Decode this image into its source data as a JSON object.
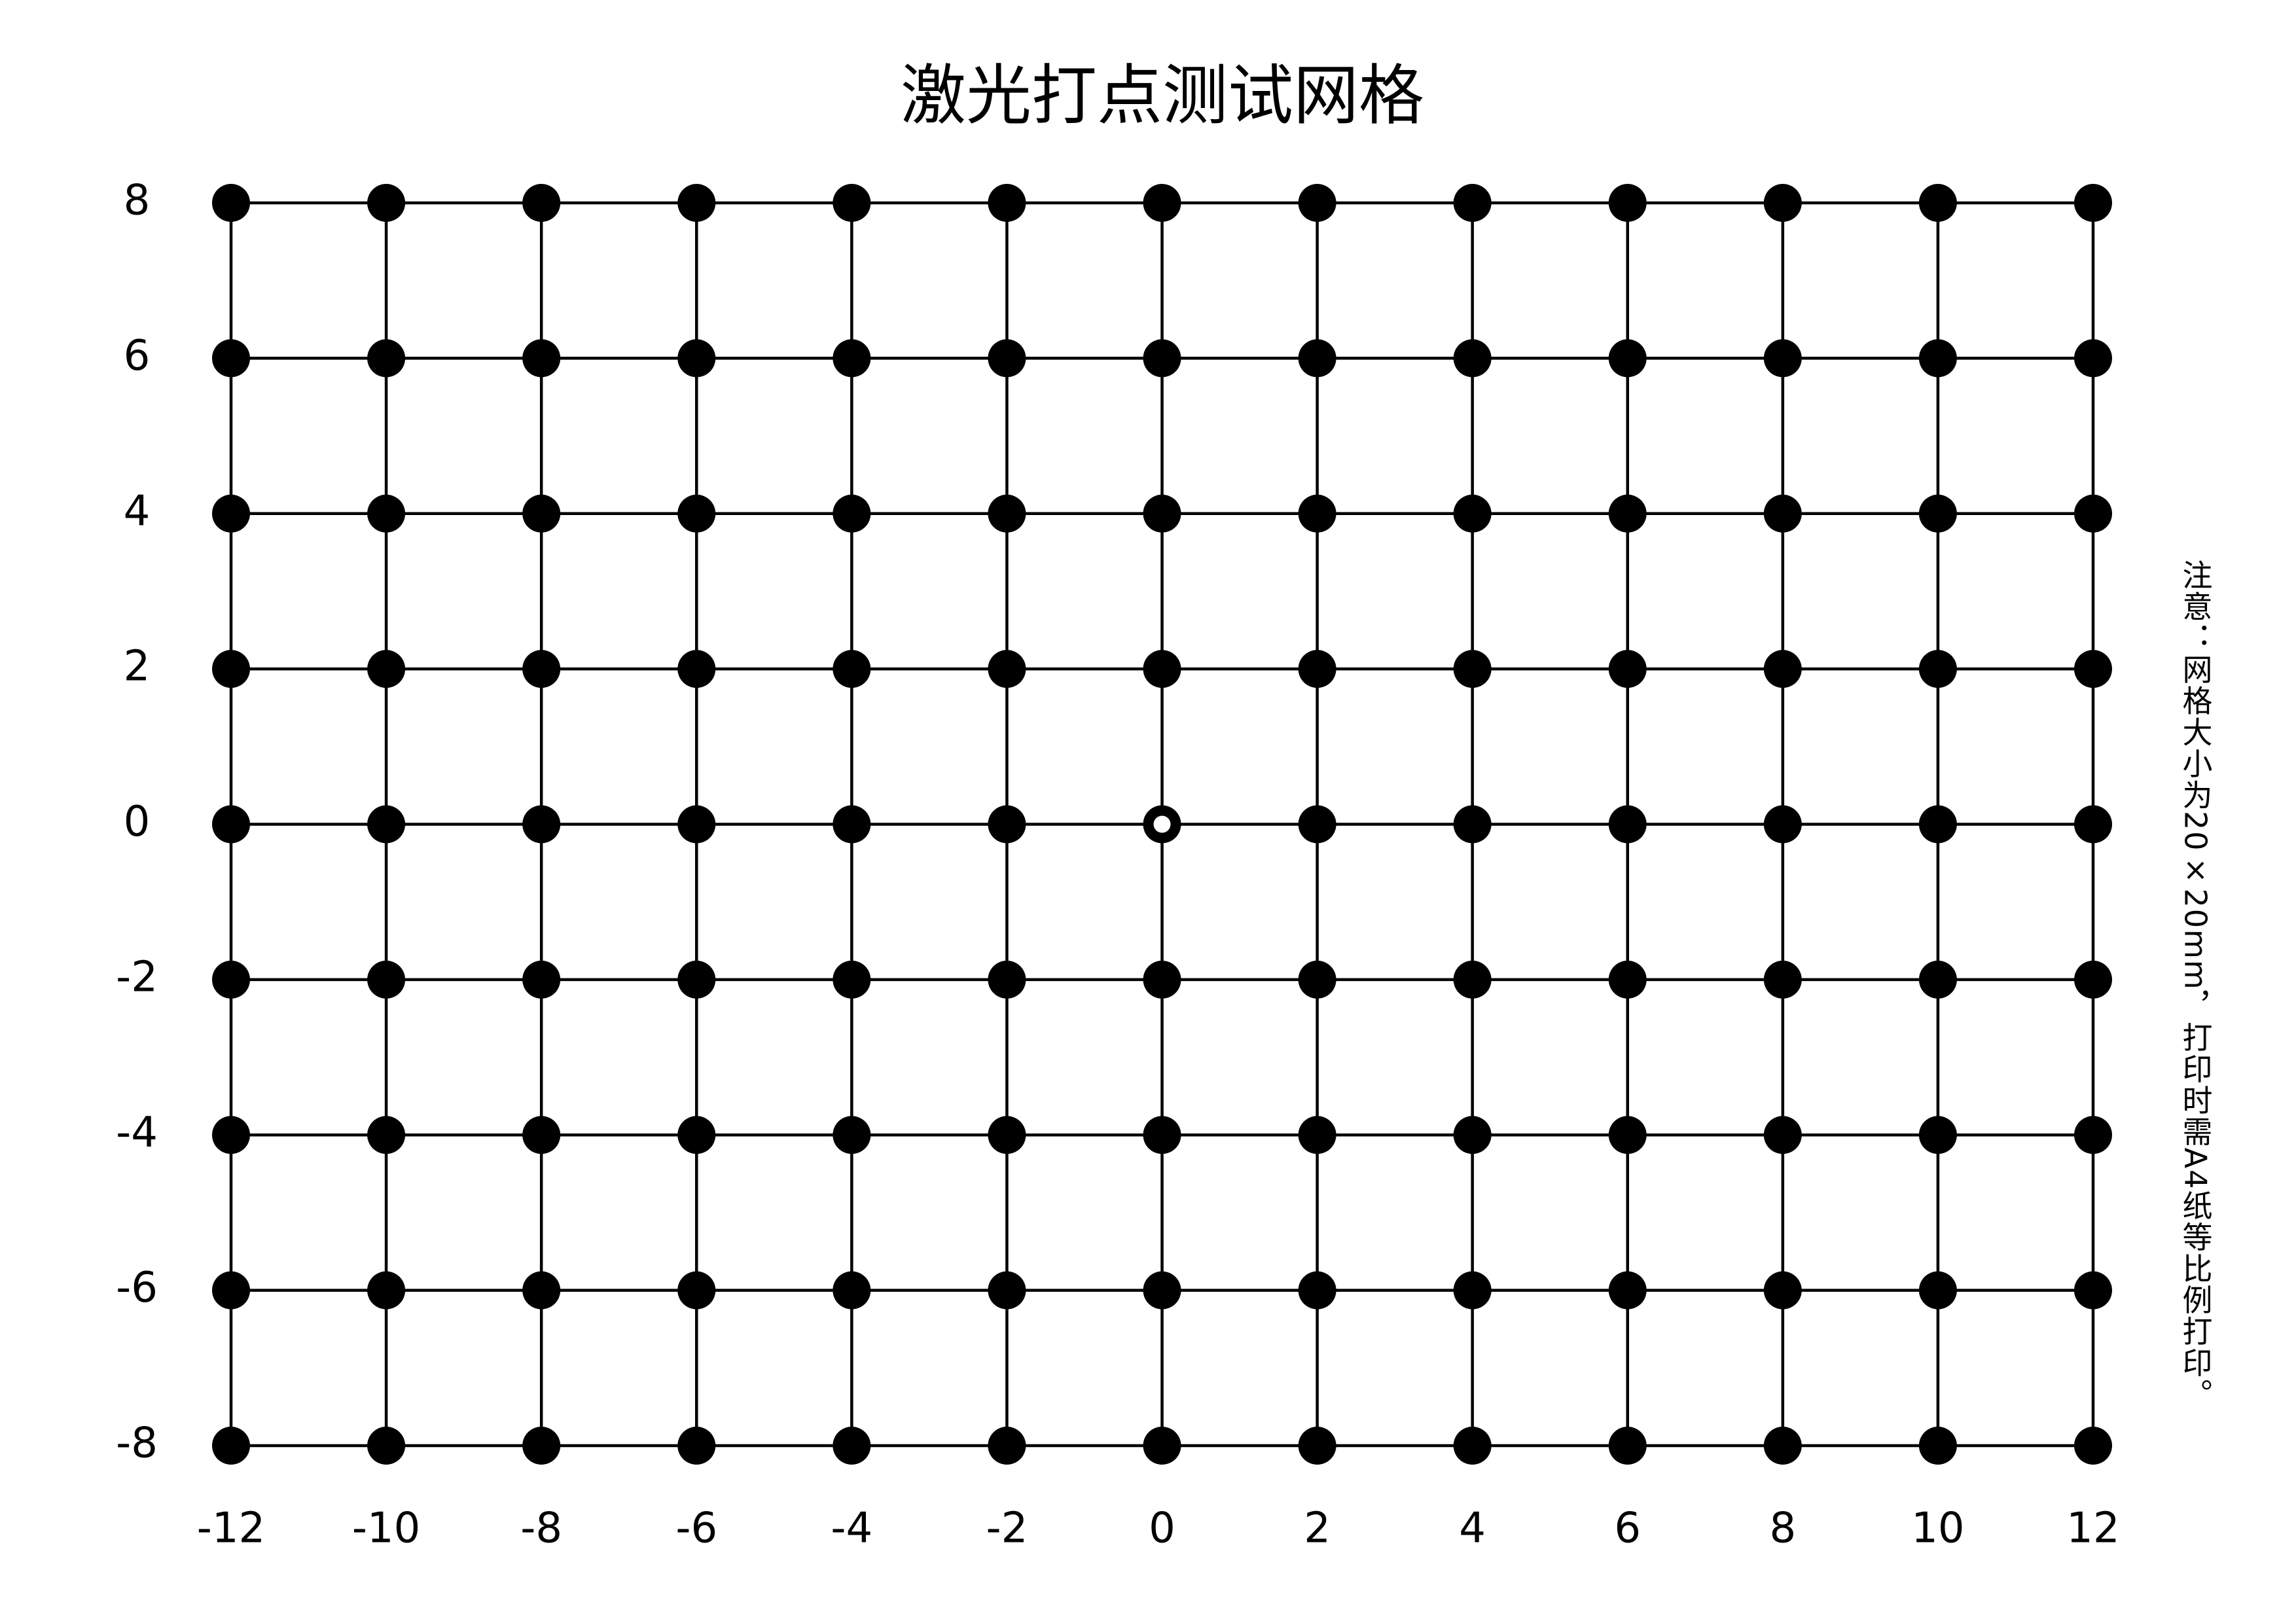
{
  "chart_data": {
    "type": "grid",
    "title": "激光打点测试网格",
    "note": "注意：网格大小为20×20mm，打印时需A4纸等比例打印。",
    "xlim": [
      -12,
      12
    ],
    "ylim": [
      -8,
      8
    ],
    "xticks": [
      -12,
      -10,
      -8,
      -6,
      -4,
      -2,
      0,
      2,
      4,
      6,
      8,
      10,
      12
    ],
    "yticks": [
      -8,
      -6,
      -4,
      -2,
      0,
      2,
      4,
      6,
      8
    ],
    "grid": true,
    "color": "#000000",
    "center_marker": {
      "x": 0,
      "y": 0
    }
  }
}
